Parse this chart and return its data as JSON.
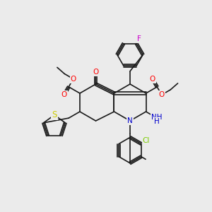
{
  "bg_color": "#ebebeb",
  "bond_color": "#1a1a1a",
  "atom_colors": {
    "O": "#ff0000",
    "N": "#0000cc",
    "S": "#cccc00",
    "F": "#cc00cc",
    "Cl": "#7acc00"
  },
  "font_size": 7.5,
  "line_width": 1.2
}
